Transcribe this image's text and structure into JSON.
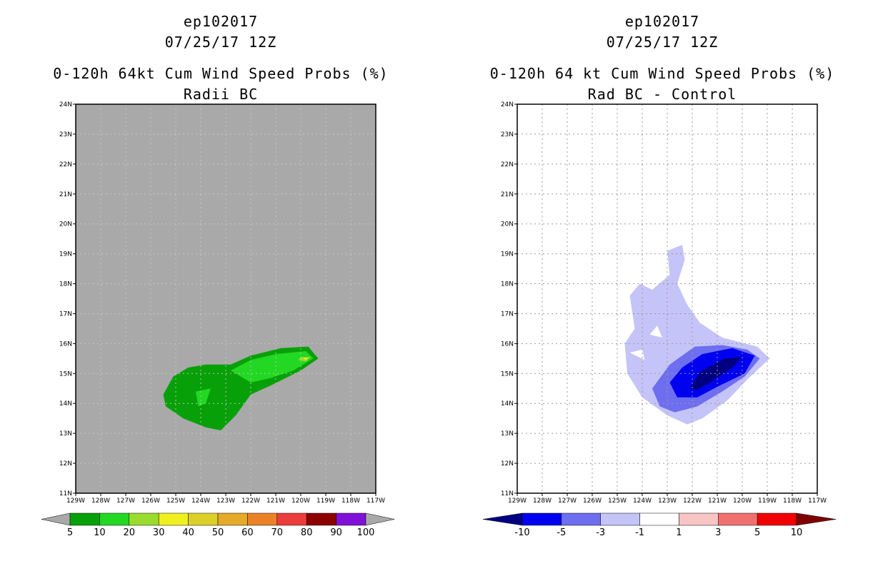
{
  "left": {
    "title_line1": "ep102017",
    "title_line2": "07/25/17 12Z",
    "title_line3": "0-120h 64kt Cum Wind Speed Probs (%)",
    "title_line4": "Radii BC"
  },
  "right": {
    "title_line1": "ep102017",
    "title_line2": "07/25/17 12Z",
    "title_line3": "0-120h 64 kt Cum Wind Speed Probs (%)",
    "title_line4": "Rad BC - Control"
  },
  "chart_data": [
    {
      "type": "contour-map",
      "title": "0-120h 64kt Cum Wind Speed Probs (%)",
      "subtitle": "Radii BC",
      "xlim": [
        -129,
        -117
      ],
      "ylim": [
        11,
        24
      ],
      "xticks": [
        "129W",
        "128W",
        "127W",
        "126W",
        "125W",
        "124W",
        "123W",
        "122W",
        "121W",
        "120W",
        "119W",
        "118W",
        "117W"
      ],
      "yticks": [
        "11N",
        "12N",
        "13N",
        "14N",
        "15N",
        "16N",
        "17N",
        "18N",
        "19N",
        "20N",
        "21N",
        "22N",
        "23N",
        "24N"
      ],
      "background": "#a9a9a9",
      "colorbar": {
        "levels": [
          "5",
          "10",
          "20",
          "30",
          "40",
          "50",
          "60",
          "70",
          "80",
          "90",
          "100"
        ],
        "colors": [
          "#08a008",
          "#22d822",
          "#9adc2e",
          "#f0f020",
          "#dcd028",
          "#e4aa28",
          "#ec8228",
          "#ec3c3c",
          "#8c0000",
          "#8010d8"
        ],
        "end_colors": [
          "#a9a9a9",
          "#a9a9a9"
        ]
      },
      "contours": [
        {
          "level": 5,
          "color": "#08a008",
          "points": [
            [
              -125.5,
              14.3
            ],
            [
              -125.1,
              14.9
            ],
            [
              -124.5,
              15.2
            ],
            [
              -123.8,
              15.3
            ],
            [
              -122.8,
              15.3
            ],
            [
              -122.0,
              15.6
            ],
            [
              -120.8,
              15.85
            ],
            [
              -119.7,
              15.9
            ],
            [
              -119.3,
              15.5
            ],
            [
              -120.0,
              15.1
            ],
            [
              -121.2,
              14.6
            ],
            [
              -122.0,
              14.3
            ],
            [
              -122.6,
              13.6
            ],
            [
              -123.2,
              13.1
            ],
            [
              -123.8,
              13.2
            ],
            [
              -124.7,
              13.5
            ],
            [
              -125.4,
              13.9
            ]
          ]
        },
        {
          "level": 10,
          "color": "#22d822",
          "points": [
            [
              -122.8,
              15.1
            ],
            [
              -122.0,
              15.45
            ],
            [
              -121.0,
              15.65
            ],
            [
              -119.8,
              15.75
            ],
            [
              -119.5,
              15.5
            ],
            [
              -120.3,
              15.1
            ],
            [
              -121.2,
              14.85
            ],
            [
              -122.0,
              14.7
            ]
          ]
        },
        {
          "level": 10,
          "color": "#22d822",
          "points": [
            [
              -124.2,
              14.4
            ],
            [
              -123.6,
              14.5
            ],
            [
              -123.8,
              14.0
            ],
            [
              -124.1,
              13.9
            ]
          ]
        },
        {
          "level": 20,
          "color": "#9adc2e",
          "points": [
            [
              -120.0,
              15.55
            ],
            [
              -119.6,
              15.55
            ],
            [
              -119.8,
              15.4
            ],
            [
              -120.1,
              15.45
            ]
          ]
        },
        {
          "level": 30,
          "color": "#f0f020",
          "points": [
            [
              -119.9,
              15.52
            ],
            [
              -119.7,
              15.52
            ],
            [
              -119.8,
              15.45
            ]
          ]
        }
      ]
    },
    {
      "type": "contour-map",
      "title": "0-120h 64 kt Cum Wind Speed Probs (%)",
      "subtitle": "Rad BC - Control",
      "xlim": [
        -129,
        -117
      ],
      "ylim": [
        11,
        24
      ],
      "xticks": [
        "129W",
        "128W",
        "127W",
        "126W",
        "125W",
        "124W",
        "123W",
        "122W",
        "121W",
        "120W",
        "119W",
        "118W",
        "117W"
      ],
      "yticks": [
        "11N",
        "12N",
        "13N",
        "14N",
        "15N",
        "16N",
        "17N",
        "18N",
        "19N",
        "20N",
        "21N",
        "22N",
        "23N",
        "24N"
      ],
      "grid": true,
      "background": "#ffffff",
      "colorbar": {
        "levels": [
          "-10",
          "-5",
          "-3",
          "-1",
          "1",
          "3",
          "5",
          "10"
        ],
        "colors": [
          "#0000f0",
          "#6e6ef0",
          "#c4c4f8",
          "#ffffff",
          "#f8c4c4",
          "#f07070",
          "#f00000"
        ],
        "end_colors": [
          "#000080",
          "#800000"
        ]
      },
      "contours": [
        {
          "level": -1,
          "color": "#c4c4f8",
          "points": [
            [
              -123.0,
              19.1
            ],
            [
              -122.4,
              19.3
            ],
            [
              -122.3,
              18.8
            ],
            [
              -122.6,
              18.0
            ],
            [
              -122.2,
              17.3
            ],
            [
              -121.7,
              16.7
            ],
            [
              -120.8,
              16.2
            ],
            [
              -119.4,
              15.9
            ],
            [
              -118.9,
              15.5
            ],
            [
              -119.8,
              14.8
            ],
            [
              -120.6,
              14.1
            ],
            [
              -121.6,
              13.5
            ],
            [
              -122.2,
              13.3
            ],
            [
              -123.0,
              13.6
            ],
            [
              -124.0,
              14.2
            ],
            [
              -124.6,
              15.0
            ],
            [
              -124.7,
              16.0
            ],
            [
              -124.3,
              16.5
            ],
            [
              -124.5,
              17.6
            ],
            [
              -124.1,
              18.0
            ],
            [
              -123.6,
              17.8
            ],
            [
              -122.9,
              18.3
            ]
          ]
        },
        {
          "level": -3,
          "color": "#6e6ef0",
          "points": [
            [
              -123.6,
              14.5
            ],
            [
              -122.9,
              15.3
            ],
            [
              -121.9,
              15.9
            ],
            [
              -120.8,
              15.95
            ],
            [
              -119.8,
              15.8
            ],
            [
              -119.3,
              15.5
            ],
            [
              -119.9,
              14.9
            ],
            [
              -120.8,
              14.4
            ],
            [
              -121.8,
              13.9
            ],
            [
              -122.7,
              13.7
            ],
            [
              -123.3,
              13.9
            ]
          ]
        },
        {
          "level": -5,
          "color": "#0000f0",
          "points": [
            [
              -122.9,
              14.7
            ],
            [
              -122.4,
              15.2
            ],
            [
              -121.6,
              15.65
            ],
            [
              -120.4,
              15.85
            ],
            [
              -119.5,
              15.6
            ],
            [
              -119.9,
              15.0
            ],
            [
              -120.9,
              14.6
            ],
            [
              -121.8,
              14.2
            ],
            [
              -122.6,
              14.2
            ]
          ]
        },
        {
          "level": -10,
          "color": "#000080",
          "points": [
            [
              -122.1,
              14.5
            ],
            [
              -121.7,
              15.05
            ],
            [
              -120.7,
              15.5
            ],
            [
              -120.0,
              15.55
            ],
            [
              -120.4,
              15.2
            ],
            [
              -121.2,
              14.75
            ],
            [
              -121.8,
              14.45
            ]
          ]
        }
      ],
      "holes": [
        {
          "points": [
            [
              -124.5,
              15.7
            ],
            [
              -124.0,
              15.8
            ],
            [
              -123.9,
              15.45
            ]
          ]
        },
        {
          "points": [
            [
              -123.7,
              16.3
            ],
            [
              -123.4,
              16.6
            ],
            [
              -123.2,
              16.2
            ]
          ]
        }
      ]
    }
  ]
}
